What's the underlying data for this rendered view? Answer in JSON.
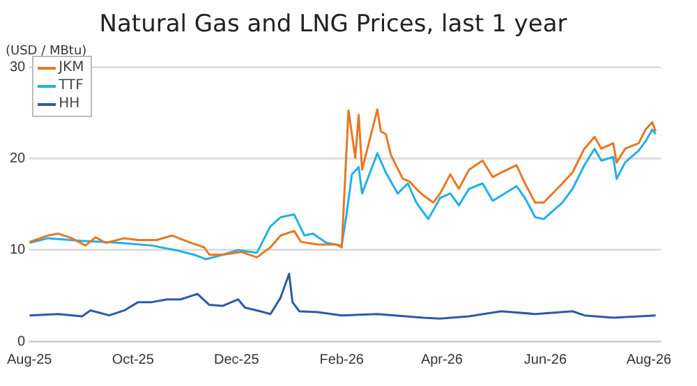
{
  "chart_data": {
    "type": "line",
    "title": "Natural Gas and LNG Prices, last 1 year",
    "ylabel": "(USD / MBtu)",
    "xlim": [
      "2025-08-01",
      "2026-08-08"
    ],
    "xticks": [
      {
        "value": "2025-08-01",
        "label": "Aug-25"
      },
      {
        "value": "2025-10-01",
        "label": "Oct-25"
      },
      {
        "value": "2025-12-01",
        "label": "Dec-25"
      },
      {
        "value": "2026-02-01",
        "label": "Feb-26"
      },
      {
        "value": "2026-04-01",
        "label": "Apr-26"
      },
      {
        "value": "2026-06-01",
        "label": "Jun-26"
      },
      {
        "value": "2026-08-01",
        "label": "Aug-26"
      }
    ],
    "ylim": [
      0,
      30
    ],
    "yticks": [
      0,
      10,
      20,
      30
    ],
    "grid": "y",
    "legend": "top left",
    "marker": "none",
    "line_style": "solid",
    "series": [
      {
        "name": "JKM",
        "color": "#e87722",
        "x": [
          "2025-08-01",
          "2025-08-12",
          "2025-08-18",
          "2025-08-26",
          "2025-09-03",
          "2025-09-09",
          "2025-09-15",
          "2025-09-26",
          "2025-10-04",
          "2025-10-15",
          "2025-10-24",
          "2025-11-04",
          "2025-11-12",
          "2025-11-15",
          "2025-11-23",
          "2025-12-04",
          "2025-12-13",
          "2025-12-21",
          "2025-12-27",
          "2026-01-04",
          "2026-01-08",
          "2026-01-18",
          "2026-01-29",
          "2026-02-01",
          "2026-02-05",
          "2026-02-09",
          "2026-02-11",
          "2026-02-13",
          "2026-02-22",
          "2026-02-24",
          "2026-02-27",
          "2026-03-02",
          "2026-03-09",
          "2026-03-13",
          "2026-03-17",
          "2026-03-21",
          "2026-03-27",
          "2026-03-31",
          "2026-04-06",
          "2026-04-11",
          "2026-04-17",
          "2026-04-25",
          "2026-05-01",
          "2026-05-06",
          "2026-05-15",
          "2026-05-20",
          "2026-05-26",
          "2026-05-31",
          "2026-06-11",
          "2026-06-17",
          "2026-06-24",
          "2026-06-30",
          "2026-07-04",
          "2026-07-11",
          "2026-07-13",
          "2026-07-18",
          "2026-07-26",
          "2026-07-30",
          "2026-08-03",
          "2026-08-05"
        ],
        "values": [
          10.9,
          11.6,
          11.8,
          11.3,
          10.5,
          11.4,
          10.8,
          11.3,
          11.1,
          11.1,
          11.6,
          10.8,
          10.3,
          9.5,
          9.5,
          9.8,
          9.2,
          10.3,
          11.6,
          12.1,
          10.9,
          10.6,
          10.6,
          10.3,
          25.3,
          20.1,
          24.8,
          18.8,
          25.4,
          23.0,
          22.7,
          20.4,
          17.8,
          17.5,
          16.7,
          16.0,
          15.2,
          16.2,
          18.3,
          16.7,
          18.8,
          19.8,
          18.0,
          18.5,
          19.3,
          17.3,
          15.2,
          15.2,
          17.3,
          18.5,
          21.1,
          22.4,
          21.1,
          21.7,
          19.6,
          21.1,
          21.7,
          23.2,
          24.0,
          23.0
        ]
      },
      {
        "name": "TTF",
        "color": "#1fb0e6",
        "x": [
          "2025-08-01",
          "2025-08-12",
          "2025-09-01",
          "2025-09-23",
          "2025-10-12",
          "2025-10-26",
          "2025-11-06",
          "2025-11-13",
          "2025-11-23",
          "2025-12-02",
          "2025-12-13",
          "2025-12-21",
          "2025-12-27",
          "2026-01-04",
          "2026-01-10",
          "2026-01-15",
          "2026-01-23",
          "2026-02-01",
          "2026-02-04",
          "2026-02-07",
          "2026-02-11",
          "2026-02-13",
          "2026-02-22",
          "2026-02-27",
          "2026-03-06",
          "2026-03-12",
          "2026-03-17",
          "2026-03-24",
          "2026-03-31",
          "2026-04-06",
          "2026-04-11",
          "2026-04-17",
          "2026-04-25",
          "2026-05-01",
          "2026-05-15",
          "2026-05-20",
          "2026-05-26",
          "2026-05-31",
          "2026-06-11",
          "2026-06-17",
          "2026-06-24",
          "2026-06-30",
          "2026-07-04",
          "2026-07-11",
          "2026-07-13",
          "2026-07-18",
          "2026-07-26",
          "2026-07-30",
          "2026-08-03",
          "2026-08-05"
        ],
        "values": [
          10.8,
          11.3,
          11.0,
          10.8,
          10.5,
          10.0,
          9.5,
          9.0,
          9.5,
          10.0,
          9.7,
          12.6,
          13.6,
          13.9,
          11.6,
          11.8,
          10.8,
          10.5,
          14.1,
          18.3,
          19.1,
          16.2,
          20.6,
          18.5,
          16.2,
          17.3,
          15.2,
          13.4,
          15.7,
          16.2,
          14.9,
          16.7,
          17.3,
          15.4,
          17.0,
          15.7,
          13.6,
          13.4,
          15.2,
          16.7,
          19.3,
          21.1,
          19.8,
          20.2,
          17.8,
          19.6,
          20.9,
          21.9,
          23.2,
          22.7
        ]
      },
      {
        "name": "HH",
        "color": "#2c5aa8",
        "x": [
          "2025-08-01",
          "2025-08-18",
          "2025-09-01",
          "2025-09-06",
          "2025-09-17",
          "2025-09-26",
          "2025-10-04",
          "2025-10-12",
          "2025-10-21",
          "2025-10-29",
          "2025-11-08",
          "2025-11-15",
          "2025-11-23",
          "2025-12-02",
          "2025-12-06",
          "2025-12-15",
          "2025-12-21",
          "2025-12-27",
          "2026-01-01",
          "2026-01-03",
          "2026-01-07",
          "2026-01-18",
          "2026-02-01",
          "2026-02-22",
          "2026-03-21",
          "2026-03-31",
          "2026-04-17",
          "2026-05-06",
          "2026-05-26",
          "2026-06-17",
          "2026-06-24",
          "2026-07-11",
          "2026-08-05"
        ],
        "values": [
          2.85,
          3.0,
          2.75,
          3.4,
          2.85,
          3.4,
          4.3,
          4.3,
          4.6,
          4.6,
          5.2,
          4.0,
          3.9,
          4.6,
          3.7,
          3.3,
          3.0,
          4.8,
          7.4,
          4.3,
          3.3,
          3.2,
          2.85,
          3.0,
          2.6,
          2.5,
          2.75,
          3.3,
          3.0,
          3.3,
          2.85,
          2.6,
          2.85
        ]
      }
    ]
  }
}
